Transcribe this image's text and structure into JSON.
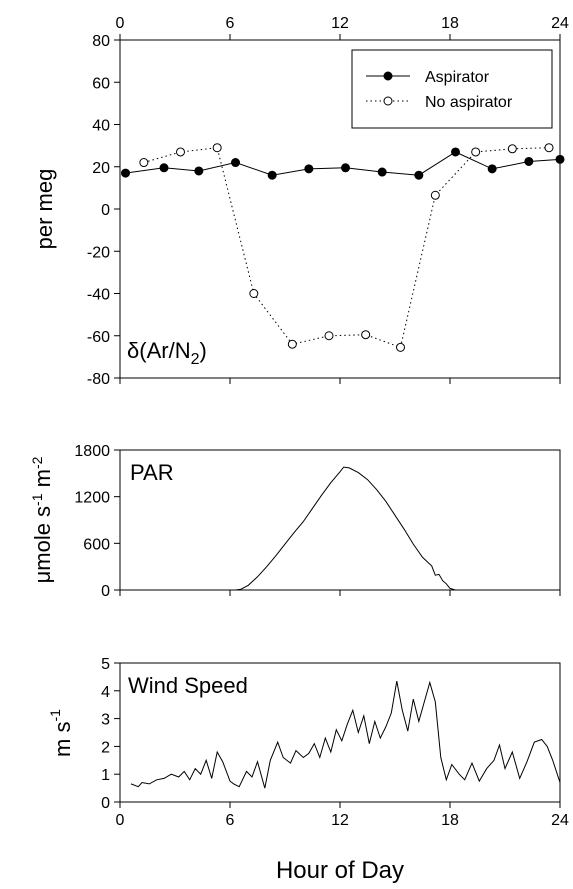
{
  "chart_data": [
    {
      "type": "line",
      "panel": "argon",
      "title": "",
      "label": "δ(Ar/N2)",
      "label_parts": {
        "delta": "δ",
        "open": "(Ar/N",
        "sub": "2",
        "close": ")"
      },
      "ylabel": "per meg",
      "ylim": [
        -80,
        80
      ],
      "yticks": [
        -80,
        -60,
        -40,
        -20,
        0,
        20,
        40,
        60,
        80
      ],
      "xlim": [
        0,
        24
      ],
      "xticks": [
        0,
        6,
        12,
        18,
        24
      ],
      "legend_position": "top-right",
      "series": [
        {
          "name": "Aspirator",
          "style": "solid line, filled circles",
          "points": [
            [
              0.3,
              17
            ],
            [
              2.4,
              19.5
            ],
            [
              4.3,
              18
            ],
            [
              6.3,
              22
            ],
            [
              8.3,
              16
            ],
            [
              10.3,
              19
            ],
            [
              12.3,
              19.5
            ],
            [
              14.3,
              17.5
            ],
            [
              16.3,
              16
            ],
            [
              18.3,
              27
            ],
            [
              20.3,
              19
            ],
            [
              22.3,
              22.5
            ],
            [
              24,
              23.5
            ]
          ]
        },
        {
          "name": "No aspirator",
          "style": "dotted line, open circles",
          "points": [
            [
              1.3,
              22
            ],
            [
              3.3,
              27
            ],
            [
              5.3,
              29
            ],
            [
              7.3,
              -40
            ],
            [
              9.4,
              -64
            ],
            [
              11.4,
              -60
            ],
            [
              13.4,
              -59.5
            ],
            [
              15.3,
              -65.5
            ],
            [
              17.2,
              6.5
            ],
            [
              19.4,
              27
            ],
            [
              21.4,
              28.5
            ],
            [
              23.4,
              29
            ]
          ]
        }
      ]
    },
    {
      "type": "line",
      "panel": "par",
      "title": "",
      "label": "PAR",
      "ylabel_parts": {
        "prefix": "μmole s",
        "sup1": "-1",
        "middle": " m",
        "sup2": "-2"
      },
      "ylim": [
        0,
        1800
      ],
      "yticks": [
        0,
        600,
        1200,
        1800
      ],
      "xlim": [
        0,
        24
      ],
      "xticks": [
        0,
        6,
        12,
        18,
        24
      ],
      "series": [
        {
          "name": "",
          "points": [
            [
              0,
              0
            ],
            [
              6.3,
              0
            ],
            [
              6.6,
              10
            ],
            [
              7,
              60
            ],
            [
              7.5,
              170
            ],
            [
              8,
              300
            ],
            [
              8.5,
              440
            ],
            [
              9,
              590
            ],
            [
              9.5,
              740
            ],
            [
              10,
              880
            ],
            [
              10.5,
              1050
            ],
            [
              11,
              1220
            ],
            [
              11.5,
              1380
            ],
            [
              12,
              1520
            ],
            [
              12.2,
              1580
            ],
            [
              12.5,
              1570
            ],
            [
              13,
              1510
            ],
            [
              13.5,
              1420
            ],
            [
              14,
              1290
            ],
            [
              14.5,
              1140
            ],
            [
              15,
              960
            ],
            [
              15.5,
              780
            ],
            [
              16,
              590
            ],
            [
              16.5,
              420
            ],
            [
              17,
              310
            ],
            [
              17.2,
              190
            ],
            [
              17.4,
              200
            ],
            [
              17.6,
              120
            ],
            [
              17.8,
              80
            ],
            [
              18,
              20
            ],
            [
              18.3,
              0
            ],
            [
              24,
              0
            ]
          ]
        }
      ]
    },
    {
      "type": "line",
      "panel": "wind",
      "title": "",
      "label": "Wind Speed",
      "ylabel_parts": {
        "prefix": "m s",
        "sup": "-1"
      },
      "ylim": [
        0,
        5
      ],
      "yticks": [
        0,
        1,
        2,
        3,
        4,
        5
      ],
      "xlim": [
        0,
        24
      ],
      "xticks": [
        0,
        6,
        12,
        18,
        24
      ],
      "xticklabels": [
        "0",
        "6",
        "12",
        "18",
        "24"
      ],
      "series": [
        {
          "name": "",
          "points": [
            [
              0.6,
              0.65
            ],
            [
              1,
              0.55
            ],
            [
              1.2,
              0.7
            ],
            [
              1.6,
              0.65
            ],
            [
              2,
              0.8
            ],
            [
              2.4,
              0.85
            ],
            [
              2.8,
              1.0
            ],
            [
              3.2,
              0.9
            ],
            [
              3.5,
              1.1
            ],
            [
              3.8,
              0.8
            ],
            [
              4.1,
              1.2
            ],
            [
              4.4,
              1.0
            ],
            [
              4.7,
              1.5
            ],
            [
              5,
              0.85
            ],
            [
              5.3,
              1.8
            ],
            [
              5.6,
              1.45
            ],
            [
              6,
              0.75
            ],
            [
              6.2,
              0.65
            ],
            [
              6.5,
              0.55
            ],
            [
              6.9,
              1.1
            ],
            [
              7.2,
              0.9
            ],
            [
              7.5,
              1.45
            ],
            [
              7.9,
              0.5
            ],
            [
              8.2,
              1.5
            ],
            [
              8.6,
              2.15
            ],
            [
              8.9,
              1.6
            ],
            [
              9.3,
              1.4
            ],
            [
              9.6,
              1.85
            ],
            [
              10,
              1.6
            ],
            [
              10.3,
              1.75
            ],
            [
              10.6,
              2.1
            ],
            [
              10.9,
              1.6
            ],
            [
              11.2,
              2.3
            ],
            [
              11.5,
              1.8
            ],
            [
              11.8,
              2.6
            ],
            [
              12.1,
              2.2
            ],
            [
              12.4,
              2.8
            ],
            [
              12.7,
              3.3
            ],
            [
              13,
              2.5
            ],
            [
              13.3,
              3.1
            ],
            [
              13.6,
              2.1
            ],
            [
              13.9,
              2.9
            ],
            [
              14.2,
              2.3
            ],
            [
              14.5,
              2.7
            ],
            [
              14.8,
              3.2
            ],
            [
              15.1,
              4.35
            ],
            [
              15.4,
              3.3
            ],
            [
              15.7,
              2.55
            ],
            [
              16,
              3.7
            ],
            [
              16.3,
              2.9
            ],
            [
              16.6,
              3.6
            ],
            [
              16.9,
              4.3
            ],
            [
              17.2,
              3.6
            ],
            [
              17.5,
              1.6
            ],
            [
              17.8,
              0.8
            ],
            [
              18.1,
              1.35
            ],
            [
              18.5,
              1.0
            ],
            [
              18.8,
              0.8
            ],
            [
              19.2,
              1.4
            ],
            [
              19.6,
              0.75
            ],
            [
              20,
              1.2
            ],
            [
              20.4,
              1.5
            ],
            [
              20.7,
              2.05
            ],
            [
              21,
              1.2
            ],
            [
              21.4,
              1.8
            ],
            [
              21.8,
              0.85
            ],
            [
              22.2,
              1.45
            ],
            [
              22.6,
              2.15
            ],
            [
              23,
              2.25
            ],
            [
              23.3,
              2.0
            ],
            [
              23.6,
              1.5
            ],
            [
              24,
              0.7
            ]
          ]
        }
      ]
    }
  ],
  "x_axis": {
    "label": "Hour of Day",
    "top_ticklabels": [
      "0",
      "6",
      "12",
      "18",
      "24"
    ]
  }
}
